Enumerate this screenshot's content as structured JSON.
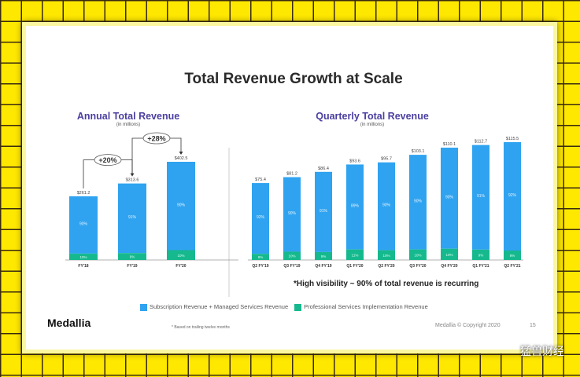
{
  "title": "Total Revenue Growth at Scale",
  "colors": {
    "subscription": "#2fa3f0",
    "services": "#16b98e"
  },
  "chart_data": [
    {
      "type": "bar",
      "stacked": true,
      "title": "Annual Total Revenue",
      "subtitle": "(in millions)",
      "categories": [
        "FY'18",
        "FY'19",
        "FY'20"
      ],
      "totals": [
        261.2,
        313.6,
        402.5
      ],
      "total_labels": [
        "$261.2",
        "$313.6",
        "$402.5"
      ],
      "series": [
        {
          "name": "Subscription Revenue + Managed Services Revenue",
          "pct_labels": [
            "90%",
            "91%",
            "90%"
          ],
          "pct": [
            90,
            91,
            90
          ]
        },
        {
          "name": "Professional Services Implementation Revenue",
          "pct_labels": [
            "10%",
            "9%",
            "10%"
          ],
          "pct": [
            10,
            9,
            10
          ]
        }
      ],
      "annotations": [
        "+20%",
        "+28%"
      ],
      "ylim": [
        0,
        420
      ]
    },
    {
      "type": "bar",
      "stacked": true,
      "title": "Quarterly Total Revenue",
      "subtitle": "(in millions)",
      "categories": [
        "Q2 FY'19",
        "Q3 FY'19",
        "Q4 FY'19",
        "Q1 FY'20",
        "Q2 FY'20",
        "Q3 FY'20",
        "Q4 FY'20",
        "Q1 FY'21",
        "Q2 FY'21"
      ],
      "totals": [
        75.4,
        81.2,
        86.4,
        93.6,
        95.7,
        103.1,
        110.1,
        112.7,
        115.5
      ],
      "total_labels": [
        "$75.4",
        "$81.2",
        "$86.4",
        "$93.6",
        "$95.7",
        "$103.1",
        "$110.1",
        "$112.7",
        "$115.5"
      ],
      "series": [
        {
          "name": "Subscription Revenue + Managed Services Revenue",
          "pct_labels": [
            "92%",
            "90%",
            "91%",
            "89%",
            "90%",
            "90%",
            "90%",
            "91%",
            "92%"
          ],
          "pct": [
            92,
            90,
            91,
            89,
            90,
            90,
            90,
            91,
            92
          ]
        },
        {
          "name": "Professional Services Implementation Revenue",
          "pct_labels": [
            "8%",
            "10%",
            "9%",
            "11%",
            "10%",
            "10%",
            "10%",
            "9%",
            "8%"
          ],
          "pct": [
            8,
            10,
            9,
            11,
            10,
            10,
            10,
            9,
            8
          ]
        }
      ],
      "ylim": [
        0,
        120
      ]
    }
  ],
  "note": "*High visibility ~ 90% of total revenue is recurring",
  "legend": [
    "Subscription Revenue + Managed Services Revenue",
    "Professional Services Implementation Revenue"
  ],
  "logo": "Medallia",
  "footnote": "* Based on trailing twelve months",
  "copyright": "Medallia © Copyright 2020",
  "page": "15",
  "watermark": "猛兽财经"
}
